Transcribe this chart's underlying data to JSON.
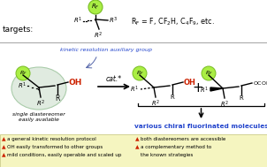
{
  "bg_color": "#ffffff",
  "bottom_bg": "#f5f5c0",
  "green_fill": "#aaee44",
  "green_edge": "#77bb22",
  "blue_color": "#2244cc",
  "red_color": "#cc2200",
  "oh_color": "#cc2200",
  "gray_sep": "#aaaaaa",
  "ellipse_fill": "#e0ebe0",
  "ellipse_edge": "#aaccaa",
  "title": "targets:",
  "rf_eq": "R$_{\\mathregular{F}}$ = F, CF$_{\\mathregular{2}}$H, C$_{\\mathregular{4}}$F$_{\\mathregular{9}}$, etc.",
  "kinetic_label": "kinetic resolution auxiliary group",
  "single_label1": "single diastereomer",
  "single_label2": "easily available",
  "various_label": "various chiral fluorinated molecules",
  "cat_label": "cat.*",
  "b1l": "a general kinetic resolution protocol",
  "b2l": "both diastereomers are accessible",
  "b3l": "OH easily transformed to other groups",
  "b4l": "a complementary method to",
  "b5l": "the known strategies",
  "b6l": "mild conditions, easily operable and scaled up"
}
